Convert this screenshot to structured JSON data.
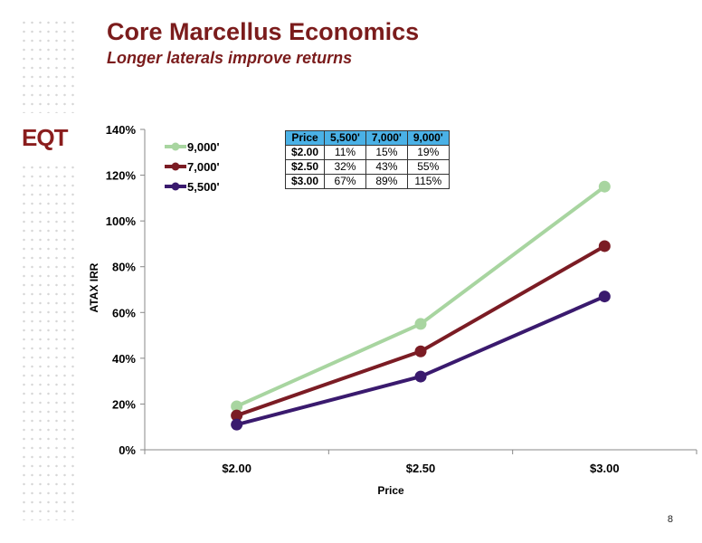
{
  "header": {
    "title": "Core Marcellus Economics",
    "subtitle": "Longer laterals improve returns"
  },
  "logo": {
    "text": "EQT"
  },
  "page_number": "8",
  "colors": {
    "title": "#7b1c1c",
    "series_9000": "#a8d5a0",
    "series_7000": "#7b1c24",
    "series_5500": "#3a1a6e",
    "table_header": "#4ab1e6"
  },
  "table": {
    "headers": [
      "Price",
      "5,500'",
      "7,000'",
      "9,000'"
    ],
    "rows": [
      [
        "$2.00",
        "11%",
        "15%",
        "19%"
      ],
      [
        "$2.50",
        "32%",
        "43%",
        "55%"
      ],
      [
        "$3.00",
        "67%",
        "89%",
        "115%"
      ]
    ]
  },
  "chart_data": {
    "type": "line",
    "title": "",
    "xlabel": "Price",
    "ylabel": "ATAX IRR",
    "categories": [
      "$2.00",
      "$2.50",
      "$3.00"
    ],
    "ylim": [
      0,
      140
    ],
    "y_ticks": [
      "0%",
      "20%",
      "40%",
      "60%",
      "80%",
      "100%",
      "120%",
      "140%"
    ],
    "grid": false,
    "legend_position": "top-left",
    "series": [
      {
        "name": "9,000'",
        "values": [
          19,
          55,
          115
        ],
        "color": "#a8d5a0"
      },
      {
        "name": "7,000'",
        "values": [
          15,
          43,
          89
        ],
        "color": "#7b1c24"
      },
      {
        "name": "5,500'",
        "values": [
          11,
          32,
          67
        ],
        "color": "#3a1a6e"
      }
    ]
  }
}
